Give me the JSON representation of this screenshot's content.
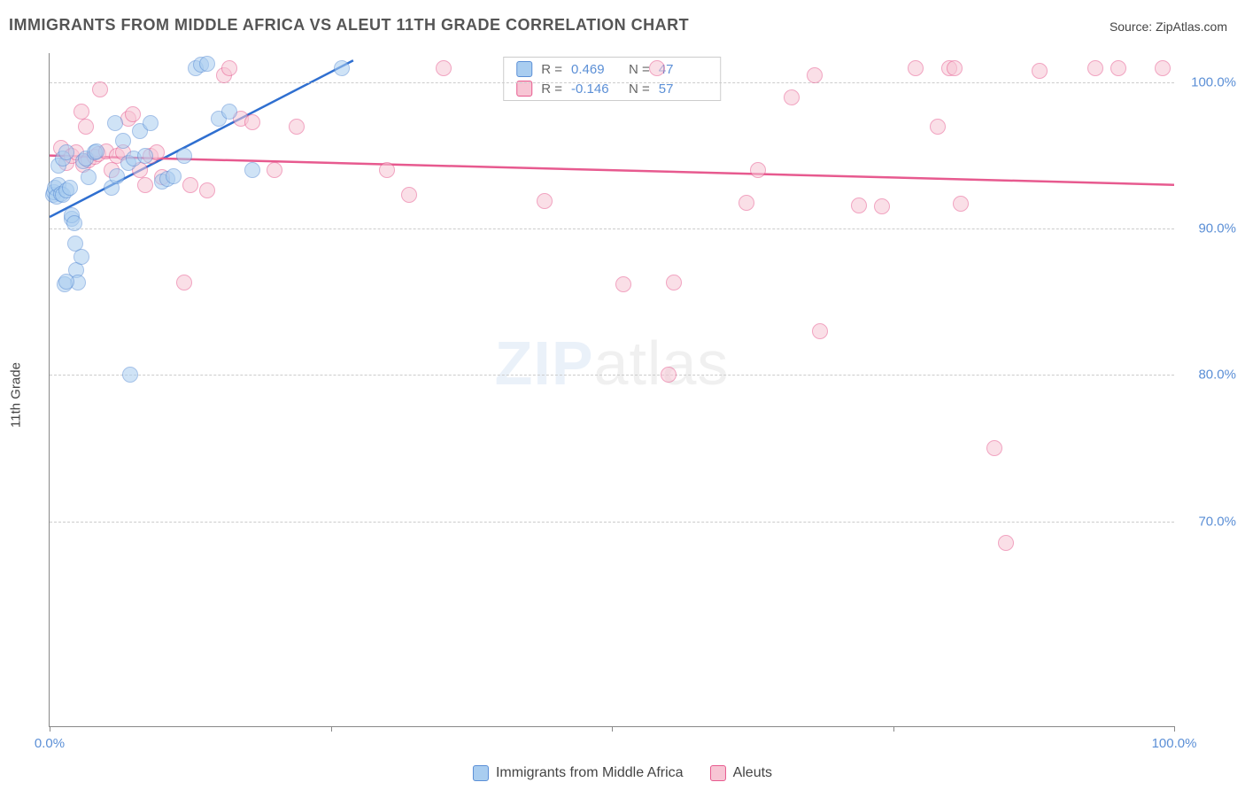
{
  "title": "IMMIGRANTS FROM MIDDLE AFRICA VS ALEUT 11TH GRADE CORRELATION CHART",
  "source": {
    "prefix": "Source:",
    "name": "ZipAtlas.com"
  },
  "watermark": {
    "part1": "ZIP",
    "part2": "atlas"
  },
  "chart_type": "scatter",
  "background_color": "#ffffff",
  "grid_color": "#cccccc",
  "axis_color": "#888888",
  "label_color": "#5b8fd6",
  "title_fontsize": 18,
  "label_fontsize": 15,
  "marker_radius": 9,
  "marker_opacity": 0.55,
  "line_width": 2.5,
  "axes": {
    "ylabel": "11th Grade",
    "xlim": [
      0,
      100
    ],
    "ylim": [
      56,
      102
    ],
    "xticks": [
      0,
      25,
      50,
      75,
      100
    ],
    "xtick_labels": [
      "0.0%",
      "",
      "",
      "",
      "100.0%"
    ],
    "yticks": [
      70,
      80,
      90,
      100
    ],
    "ytick_labels": [
      "70.0%",
      "80.0%",
      "90.0%",
      "100.0%"
    ]
  },
  "series": [
    {
      "label": "Immigrants from Middle Africa",
      "fill": "#a9cdf0",
      "stroke": "#5b8fd6",
      "line_color": "#2f6fd0",
      "R": "0.469",
      "N": "47",
      "regression": {
        "x1": 0,
        "y1": 90.8,
        "x2": 27,
        "y2": 101.5
      },
      "points": [
        [
          0.3,
          92.3
        ],
        [
          0.4,
          92.5
        ],
        [
          0.5,
          92.8
        ],
        [
          0.6,
          92.2
        ],
        [
          0.8,
          93.0
        ],
        [
          0.8,
          94.3
        ],
        [
          1.0,
          92.4
        ],
        [
          1.2,
          92.3
        ],
        [
          1.2,
          94.8
        ],
        [
          1.5,
          92.6
        ],
        [
          1.5,
          95.2
        ],
        [
          1.8,
          92.8
        ],
        [
          2.0,
          90.7
        ],
        [
          2.0,
          90.9
        ],
        [
          2.2,
          90.4
        ],
        [
          2.3,
          89.0
        ],
        [
          2.4,
          87.2
        ],
        [
          2.5,
          86.3
        ],
        [
          1.3,
          86.2
        ],
        [
          1.5,
          86.4
        ],
        [
          2.8,
          88.1
        ],
        [
          3.0,
          94.6
        ],
        [
          3.2,
          94.8
        ],
        [
          3.5,
          93.5
        ],
        [
          4.0,
          95.2
        ],
        [
          4.2,
          95.3
        ],
        [
          5.5,
          92.8
        ],
        [
          5.8,
          97.2
        ],
        [
          6.0,
          93.6
        ],
        [
          6.5,
          96.0
        ],
        [
          7.0,
          94.5
        ],
        [
          7.5,
          94.8
        ],
        [
          8.0,
          96.7
        ],
        [
          8.5,
          95.0
        ],
        [
          9.0,
          97.2
        ],
        [
          10.0,
          93.2
        ],
        [
          10.5,
          93.4
        ],
        [
          11.0,
          93.6
        ],
        [
          12.0,
          95.0
        ],
        [
          13.0,
          101.0
        ],
        [
          13.5,
          101.2
        ],
        [
          14.0,
          101.3
        ],
        [
          15.0,
          97.5
        ],
        [
          16.0,
          98.0
        ],
        [
          18.0,
          94.0
        ],
        [
          26.0,
          101.0
        ],
        [
          7.2,
          80.0
        ]
      ]
    },
    {
      "label": "Aleuts",
      "fill": "#f7c5d4",
      "stroke": "#e75a8f",
      "line_color": "#e75a8f",
      "R": "-0.146",
      "N": "57",
      "regression": {
        "x1": 0,
        "y1": 95.0,
        "x2": 100,
        "y2": 93.0
      },
      "points": [
        [
          1.0,
          95.5
        ],
        [
          1.5,
          94.5
        ],
        [
          2.0,
          95.0
        ],
        [
          2.4,
          95.2
        ],
        [
          2.8,
          98.0
        ],
        [
          3.0,
          94.4
        ],
        [
          3.2,
          97.0
        ],
        [
          3.5,
          94.7
        ],
        [
          4.0,
          94.9
        ],
        [
          4.3,
          95.1
        ],
        [
          4.5,
          99.5
        ],
        [
          5.0,
          95.3
        ],
        [
          5.5,
          94.0
        ],
        [
          6.0,
          95.0
        ],
        [
          6.5,
          95.2
        ],
        [
          7.0,
          97.5
        ],
        [
          7.4,
          97.8
        ],
        [
          8.0,
          94.0
        ],
        [
          8.5,
          93.0
        ],
        [
          9.0,
          95.0
        ],
        [
          9.5,
          95.2
        ],
        [
          10.0,
          93.5
        ],
        [
          12.0,
          86.3
        ],
        [
          12.5,
          93.0
        ],
        [
          14.0,
          92.6
        ],
        [
          15.5,
          100.5
        ],
        [
          16.0,
          101.0
        ],
        [
          17.0,
          97.5
        ],
        [
          18.0,
          97.3
        ],
        [
          20.0,
          94.0
        ],
        [
          22.0,
          97.0
        ],
        [
          30.0,
          94.0
        ],
        [
          32.0,
          92.3
        ],
        [
          35.0,
          101.0
        ],
        [
          44.0,
          91.9
        ],
        [
          51.0,
          86.2
        ],
        [
          54.0,
          101.0
        ],
        [
          55.0,
          80.0
        ],
        [
          55.5,
          86.3
        ],
        [
          62.0,
          91.8
        ],
        [
          63.0,
          94.0
        ],
        [
          66.0,
          99.0
        ],
        [
          68.0,
          100.5
        ],
        [
          68.5,
          83.0
        ],
        [
          72.0,
          91.6
        ],
        [
          74.0,
          91.5
        ],
        [
          77.0,
          101.0
        ],
        [
          79.0,
          97.0
        ],
        [
          80.0,
          101.0
        ],
        [
          80.5,
          101.0
        ],
        [
          81.0,
          91.7
        ],
        [
          84.0,
          75.0
        ],
        [
          85.0,
          68.5
        ],
        [
          88.0,
          100.8
        ],
        [
          93.0,
          101.0
        ],
        [
          95.0,
          101.0
        ],
        [
          99.0,
          101.0
        ]
      ]
    }
  ]
}
